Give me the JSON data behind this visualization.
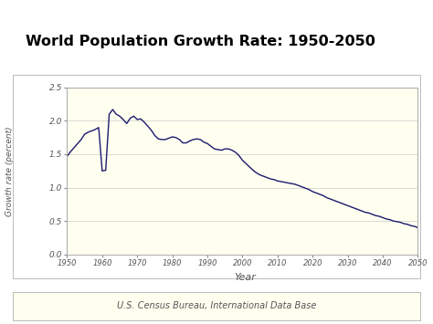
{
  "title": "World Population Growth Rate: 1950-2050",
  "xlabel": "Year",
  "ylabel": "Growth rate (percent)",
  "footer": "U.S. Census Bureau, International Data Base",
  "line_color": "#1a1a6e",
  "bg_color_outer": "#ffffff",
  "bg_color_title": "#dcdce8",
  "bg_color_chart_surround": "#ffffff",
  "bg_color_plot": "#fffff0",
  "bg_color_footer": "#fffff0",
  "xlim": [
    1950,
    2050
  ],
  "ylim": [
    0.0,
    2.5
  ],
  "xticks": [
    1950,
    1960,
    1970,
    1980,
    1990,
    2000,
    2010,
    2020,
    2030,
    2040,
    2050
  ],
  "yticks": [
    0.0,
    0.5,
    1.0,
    1.5,
    2.0,
    2.5
  ],
  "years": [
    1950,
    1951,
    1952,
    1953,
    1954,
    1955,
    1956,
    1957,
    1958,
    1959,
    1960,
    1961,
    1962,
    1963,
    1964,
    1965,
    1966,
    1967,
    1968,
    1969,
    1970,
    1971,
    1972,
    1973,
    1974,
    1975,
    1976,
    1977,
    1978,
    1979,
    1980,
    1981,
    1982,
    1983,
    1984,
    1985,
    1986,
    1987,
    1988,
    1989,
    1990,
    1991,
    1992,
    1993,
    1994,
    1995,
    1996,
    1997,
    1998,
    1999,
    2000,
    2001,
    2002,
    2003,
    2004,
    2005,
    2006,
    2007,
    2008,
    2009,
    2010,
    2011,
    2012,
    2013,
    2014,
    2015,
    2016,
    2017,
    2018,
    2019,
    2020,
    2021,
    2022,
    2023,
    2024,
    2025,
    2026,
    2027,
    2028,
    2029,
    2030,
    2031,
    2032,
    2033,
    2034,
    2035,
    2036,
    2037,
    2038,
    2039,
    2040,
    2041,
    2042,
    2043,
    2044,
    2045,
    2046,
    2047,
    2048,
    2049,
    2050
  ],
  "values": [
    1.47,
    1.54,
    1.6,
    1.66,
    1.72,
    1.8,
    1.83,
    1.85,
    1.87,
    1.9,
    1.25,
    1.26,
    2.1,
    2.17,
    2.1,
    2.07,
    2.02,
    1.96,
    2.04,
    2.07,
    2.02,
    2.03,
    1.98,
    1.92,
    1.86,
    1.78,
    1.73,
    1.72,
    1.72,
    1.74,
    1.76,
    1.75,
    1.72,
    1.67,
    1.67,
    1.7,
    1.72,
    1.73,
    1.72,
    1.68,
    1.66,
    1.62,
    1.58,
    1.57,
    1.56,
    1.58,
    1.58,
    1.56,
    1.53,
    1.48,
    1.41,
    1.36,
    1.31,
    1.26,
    1.22,
    1.19,
    1.17,
    1.15,
    1.13,
    1.12,
    1.1,
    1.09,
    1.08,
    1.07,
    1.06,
    1.05,
    1.03,
    1.01,
    0.99,
    0.97,
    0.94,
    0.92,
    0.9,
    0.88,
    0.85,
    0.83,
    0.81,
    0.79,
    0.77,
    0.75,
    0.73,
    0.71,
    0.69,
    0.67,
    0.65,
    0.63,
    0.62,
    0.6,
    0.58,
    0.57,
    0.55,
    0.53,
    0.52,
    0.5,
    0.49,
    0.48,
    0.46,
    0.45,
    0.43,
    0.42,
    0.4
  ]
}
